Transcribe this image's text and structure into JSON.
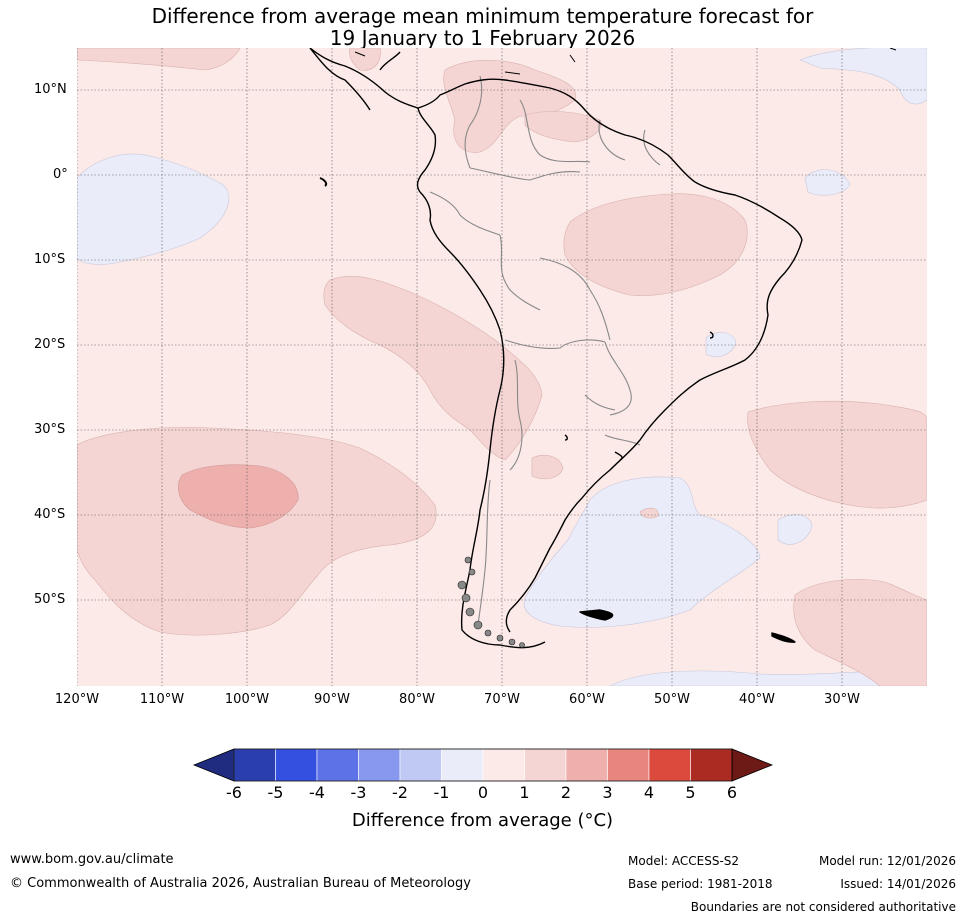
{
  "title": {
    "line1": "Difference from average mean minimum temperature forecast for",
    "line2": "19 January to 1 February 2026"
  },
  "map": {
    "latitudes": [
      "10°N",
      "0°",
      "10°S",
      "20°S",
      "30°S",
      "40°S",
      "50°S"
    ],
    "longitudes": [
      "120°W",
      "110°W",
      "100°W",
      "90°W",
      "80°W",
      "70°W",
      "60°W",
      "50°W",
      "40°W",
      "30°W"
    ],
    "background_color": "#fbeae8"
  },
  "colorbar": {
    "ticks": [
      "-6",
      "-5",
      "-4",
      "-3",
      "-2",
      "-1",
      "0",
      "1",
      "2",
      "3",
      "4",
      "5",
      "6"
    ],
    "colors": [
      "#1f2c80",
      "#2a3eb0",
      "#3350e0",
      "#5c72e6",
      "#8898ee",
      "#c0c8f4",
      "#eaecfa",
      "#fbeae8",
      "#f5d5d3",
      "#eeb0ad",
      "#e8857f",
      "#dc4a3e",
      "#ab2a21",
      "#6d1a16"
    ],
    "label": "Difference from average (°C)"
  },
  "footer": {
    "website": "www.bom.gov.au/climate",
    "copyright": "© Commonwealth of Australia 2026, Australian Bureau of Meteorology",
    "model": "Model: ACCESS-S2",
    "base_period": "Base period: 1981-2018",
    "model_run": "Model run: 12/01/2026",
    "issued": "Issued: 14/01/2026",
    "disclaimer": "Boundaries are not considered authoritative"
  }
}
